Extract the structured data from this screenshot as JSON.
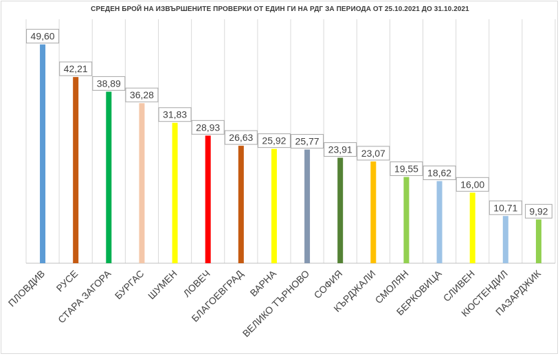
{
  "chart_data": {
    "type": "bar",
    "title": "СРЕДЕН БРОЙ НА ИЗВЪРШЕНИТЕ ПРОВЕРКИ ОТ ЕДИН ГИ НА РДГ ЗА ПЕРИОДА ОТ 25.10.2021 ДО 31.10.2021",
    "categories": [
      "ПЛОВДИВ",
      "РУСЕ",
      "СТАРА ЗАГОРА",
      "БУРГАС",
      "ШУМЕН",
      "ЛОВЕЧ",
      "БЛАГОЕВГРАД",
      "ВАРНА",
      "ВЕЛИКО ТЪРНОВО",
      "СОФИЯ",
      "КЪРДЖАЛИ",
      "СМОЛЯН",
      "БЕРКОВИЦА",
      "СЛИВЕН",
      "КЮСТЕНДИЛ",
      "ПАЗАРДЖИК"
    ],
    "values": [
      49.6,
      42.21,
      38.89,
      36.28,
      31.83,
      28.93,
      26.63,
      25.92,
      25.77,
      23.91,
      23.07,
      19.55,
      18.62,
      16.0,
      10.71,
      9.92
    ],
    "value_labels": [
      "49,60",
      "42,21",
      "38,89",
      "36,28",
      "31,83",
      "28,93",
      "26,63",
      "25,92",
      "25,77",
      "23,91",
      "23,07",
      "19,55",
      "18,62",
      "16,00",
      "10,71",
      "9,92"
    ],
    "colors": [
      "#5b9bd5",
      "#c55a11",
      "#00b050",
      "#f4c7a9",
      "#ffff00",
      "#ff0000",
      "#c55a11",
      "#ffff00",
      "#8497b0",
      "#548235",
      "#ffc000",
      "#92d050",
      "#9dc3e6",
      "#ffff00",
      "#9dc3e6",
      "#92d050"
    ],
    "ylim": [
      0,
      55
    ],
    "grid": "vertical-category-separators",
    "legend": "none",
    "xlabel": "",
    "ylabel": ""
  }
}
